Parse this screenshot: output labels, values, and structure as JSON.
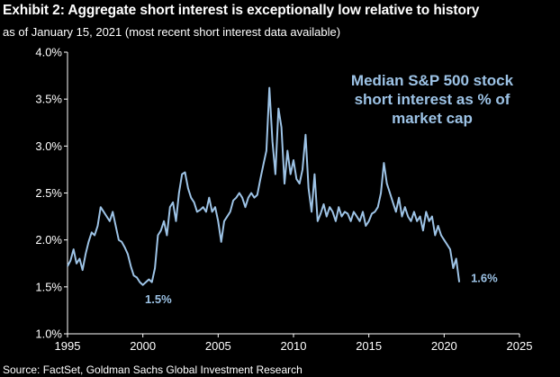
{
  "header": {
    "title": "Exhibit 2: Aggregate short interest is exceptionally low relative to history",
    "subtitle": "as of January 15, 2021 (most recent short interest data available)"
  },
  "footer": {
    "source": "Source: FactSet, Goldman Sachs Global Investment Research"
  },
  "chart_data": {
    "type": "line",
    "title": "Exhibit 2: Aggregate short interest is exceptionally low relative to history",
    "subtitle": "as of January 15, 2021 (most recent short interest data available)",
    "xlabel": "",
    "ylabel": "",
    "xlim": [
      1995,
      2025
    ],
    "ylim": [
      1.0,
      4.0
    ],
    "x_ticks": [
      1995,
      2000,
      2005,
      2010,
      2015,
      2020,
      2025
    ],
    "x_tick_labels": [
      "1995",
      "2000",
      "2005",
      "2010",
      "2015",
      "2020",
      "2025"
    ],
    "y_ticks": [
      1.0,
      1.5,
      2.0,
      2.5,
      3.0,
      3.5,
      4.0
    ],
    "y_tick_labels": [
      "1.0%",
      "1.5%",
      "2.0%",
      "2.5%",
      "3.0%",
      "3.5%",
      "4.0%"
    ],
    "grid": false,
    "legend": "none",
    "line_color": "#9dc3e6",
    "series": [
      {
        "name": "Median S&P 500 stock short interest as % of market cap",
        "x": [
          1995.0,
          1995.2,
          1995.4,
          1995.6,
          1995.8,
          1996.0,
          1996.2,
          1996.4,
          1996.6,
          1996.8,
          1997.0,
          1997.2,
          1997.4,
          1997.6,
          1997.8,
          1998.0,
          1998.2,
          1998.4,
          1998.6,
          1998.8,
          1999.0,
          1999.2,
          1999.4,
          1999.6,
          1999.8,
          2000.0,
          2000.2,
          2000.4,
          2000.6,
          2000.8,
          2001.0,
          2001.2,
          2001.4,
          2001.6,
          2001.8,
          2002.0,
          2002.2,
          2002.4,
          2002.6,
          2002.8,
          2003.0,
          2003.2,
          2003.4,
          2003.6,
          2003.8,
          2004.0,
          2004.2,
          2004.4,
          2004.6,
          2004.8,
          2005.0,
          2005.2,
          2005.4,
          2005.6,
          2005.8,
          2006.0,
          2006.2,
          2006.4,
          2006.6,
          2006.8,
          2007.0,
          2007.2,
          2007.4,
          2007.6,
          2007.8,
          2008.0,
          2008.2,
          2008.4,
          2008.6,
          2008.8,
          2009.0,
          2009.2,
          2009.4,
          2009.6,
          2009.8,
          2010.0,
          2010.2,
          2010.4,
          2010.6,
          2010.8,
          2011.0,
          2011.2,
          2011.4,
          2011.6,
          2011.8,
          2012.0,
          2012.2,
          2012.4,
          2012.6,
          2012.8,
          2013.0,
          2013.2,
          2013.4,
          2013.6,
          2013.8,
          2014.0,
          2014.2,
          2014.4,
          2014.6,
          2014.8,
          2015.0,
          2015.2,
          2015.4,
          2015.6,
          2015.8,
          2016.0,
          2016.2,
          2016.4,
          2016.6,
          2016.8,
          2017.0,
          2017.2,
          2017.4,
          2017.6,
          2017.8,
          2018.0,
          2018.2,
          2018.4,
          2018.6,
          2018.8,
          2019.0,
          2019.2,
          2019.4,
          2019.6,
          2019.8,
          2020.0,
          2020.2,
          2020.4,
          2020.6,
          2020.8,
          2021.0
        ],
        "y": [
          1.72,
          1.78,
          1.9,
          1.75,
          1.8,
          1.68,
          1.85,
          1.98,
          2.08,
          2.05,
          2.15,
          2.35,
          2.3,
          2.25,
          2.2,
          2.3,
          2.15,
          2.0,
          1.98,
          1.92,
          1.85,
          1.72,
          1.62,
          1.6,
          1.55,
          1.52,
          1.55,
          1.58,
          1.55,
          1.7,
          2.05,
          2.1,
          2.2,
          2.05,
          2.35,
          2.4,
          2.2,
          2.5,
          2.7,
          2.72,
          2.55,
          2.45,
          2.4,
          2.3,
          2.32,
          2.35,
          2.3,
          2.45,
          2.3,
          2.35,
          2.2,
          1.98,
          2.2,
          2.25,
          2.3,
          2.42,
          2.45,
          2.5,
          2.45,
          2.35,
          2.45,
          2.5,
          2.45,
          2.48,
          2.65,
          2.8,
          2.95,
          3.62,
          3.05,
          2.7,
          3.4,
          3.2,
          2.6,
          2.95,
          2.7,
          2.85,
          2.65,
          2.6,
          2.75,
          3.12,
          2.55,
          2.3,
          2.7,
          2.2,
          2.28,
          2.38,
          2.25,
          2.35,
          2.3,
          2.2,
          2.35,
          2.25,
          2.3,
          2.28,
          2.2,
          2.3,
          2.25,
          2.2,
          2.3,
          2.15,
          2.2,
          2.28,
          2.3,
          2.35,
          2.5,
          2.82,
          2.6,
          2.5,
          2.4,
          2.3,
          2.45,
          2.25,
          2.35,
          2.25,
          2.2,
          2.3,
          2.2,
          2.25,
          2.1,
          2.3,
          2.2,
          2.25,
          2.05,
          2.15,
          2.05,
          2.0,
          1.95,
          1.9,
          1.7,
          1.8,
          1.55
        ]
      }
    ],
    "annotations": [
      {
        "text_lines": [
          "Median S&P 500 stock",
          "short interest as % of",
          "market cap"
        ],
        "role": "series-label",
        "placement": "upper-right"
      },
      {
        "text": "1.5%",
        "x": 2000.5,
        "y": 1.5,
        "role": "min-label"
      },
      {
        "text": "1.6%",
        "x": 2021.0,
        "y": 1.6,
        "role": "latest-label"
      }
    ]
  }
}
